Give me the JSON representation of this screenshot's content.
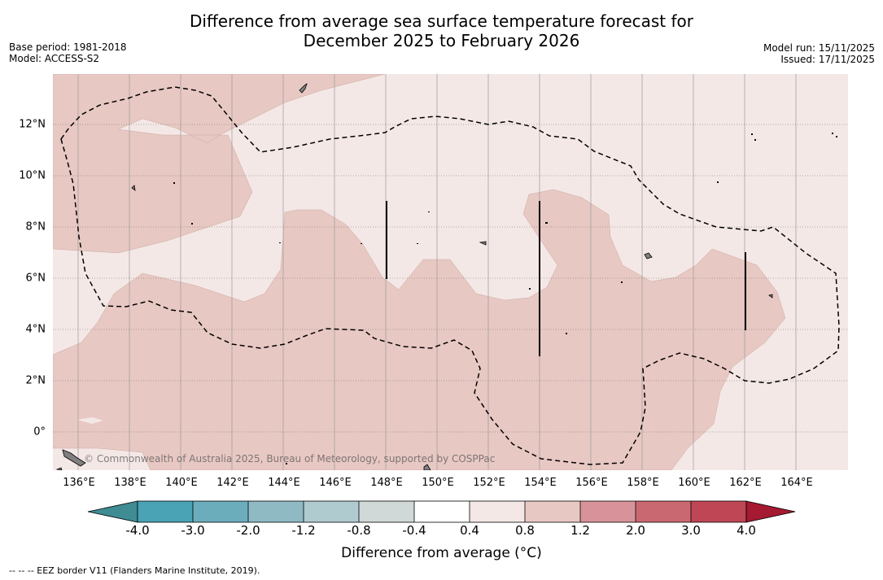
{
  "title": {
    "line1": "Difference from average sea surface temperature forecast for",
    "line2": "December 2025 to February 2026"
  },
  "meta_left": {
    "base_period": "Base period: 1981-2018",
    "model": "Model: ACCESS-S2"
  },
  "meta_right": {
    "model_run": "Model run: 15/11/2025",
    "issued": "Issued: 17/11/2025"
  },
  "map": {
    "credit": "© Commonwealth of Australia 2025, Bureau of Meteorology, supported by COSPPac",
    "lon_ticks": [
      "136°E",
      "138°E",
      "140°E",
      "142°E",
      "144°E",
      "146°E",
      "148°E",
      "150°E",
      "152°E",
      "154°E",
      "156°E",
      "158°E",
      "160°E",
      "162°E",
      "164°E"
    ],
    "lat_ticks": [
      "12°N",
      "10°N",
      "8°N",
      "6°N",
      "4°N",
      "2°N",
      "0°"
    ],
    "colors": {
      "anomaly_0_4_0_8": "#f4e8e6",
      "anomaly_0_8_1_2": "#e8c8c3",
      "land": "#808080"
    }
  },
  "colorbar": {
    "labels": [
      "-4.0",
      "-3.0",
      "-2.0",
      "-1.2",
      "-0.8",
      "-0.4",
      "0.4",
      "0.8",
      "1.2",
      "2.0",
      "3.0",
      "4.0"
    ],
    "colors": [
      "#3f8c93",
      "#4aa3b4",
      "#6cadbc",
      "#8fbac4",
      "#b0cbcf",
      "#d0d8d8",
      "#ffffff",
      "#f4e8e6",
      "#e8c8c3",
      "#d8939a",
      "#c96870",
      "#be4655",
      "#a51931"
    ],
    "title": "Difference from average (°C)"
  },
  "footnote": "-- -- -- EEZ border V11 (Flanders Marine Institute, 2019)."
}
